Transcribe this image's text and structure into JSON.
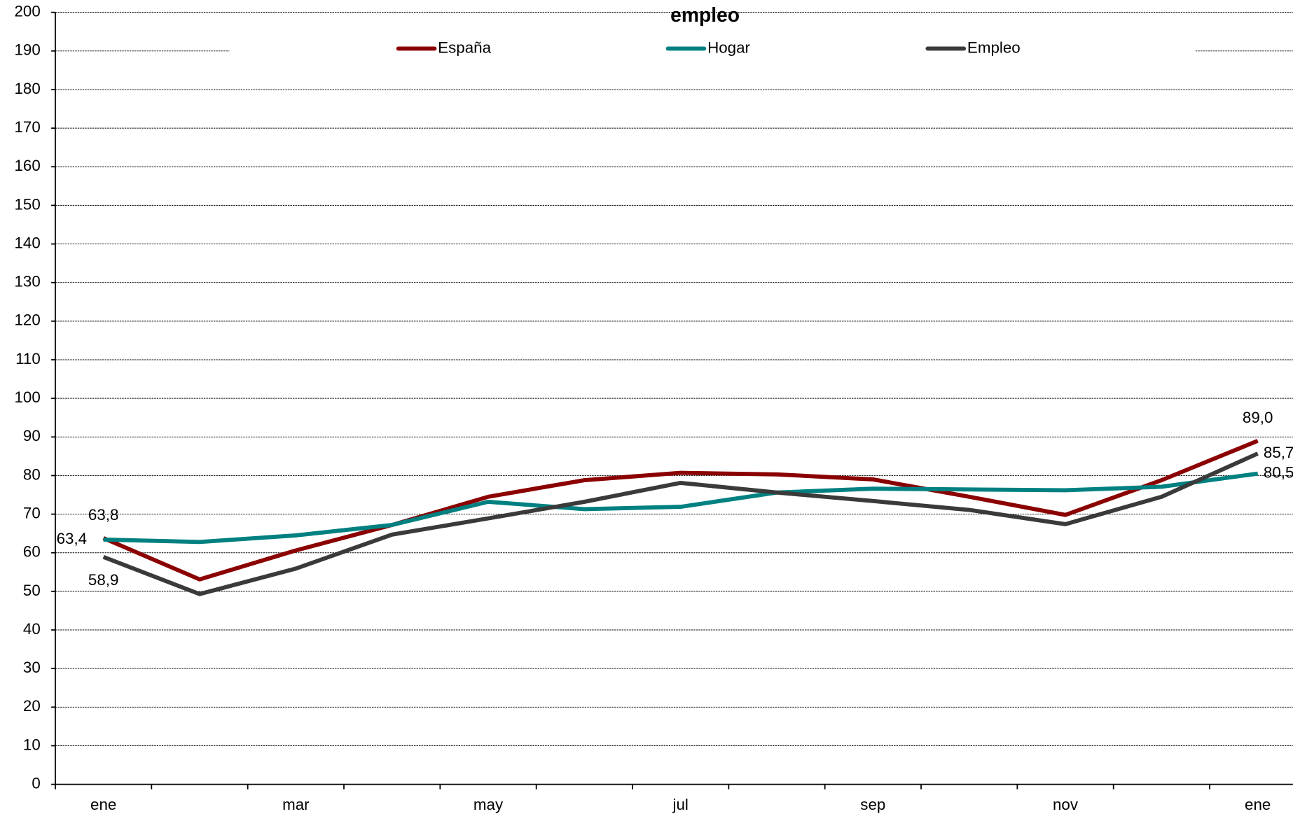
{
  "chart_data": {
    "type": "line",
    "title": "empleo",
    "categories": [
      "ene",
      null,
      "mar",
      null,
      "may",
      null,
      "jul",
      null,
      "sep",
      null,
      "nov",
      null,
      "ene"
    ],
    "series": [
      {
        "name": "España",
        "color": "#8b0000",
        "values": [
          63.8,
          53.1,
          60.6,
          67.2,
          74.5,
          78.8,
          80.7,
          80.3,
          79.0,
          74.5,
          69.8,
          78.8,
          89.0
        ],
        "value_labels": [
          "63,8",
          null,
          null,
          null,
          null,
          null,
          null,
          null,
          null,
          null,
          null,
          null,
          "89,0"
        ]
      },
      {
        "name": "Hogar",
        "color": "#008080",
        "values": [
          63.4,
          62.8,
          64.5,
          67.2,
          73.2,
          71.3,
          71.9,
          75.6,
          76.6,
          76.4,
          76.2,
          77.1,
          80.5
        ],
        "value_labels": [
          "63,4",
          null,
          null,
          null,
          null,
          null,
          null,
          null,
          null,
          null,
          null,
          null,
          "80,5"
        ]
      },
      {
        "name": "Empleo",
        "color": "#3a3a3a",
        "values": [
          58.9,
          49.3,
          55.9,
          64.7,
          68.9,
          73.2,
          78.1,
          75.6,
          73.4,
          71.1,
          67.4,
          74.5,
          85.7
        ],
        "value_labels": [
          "58,9",
          null,
          null,
          null,
          null,
          null,
          null,
          null,
          null,
          null,
          null,
          null,
          "85,7"
        ]
      }
    ],
    "ylim": [
      0,
      200
    ],
    "yticks": [
      0,
      10,
      20,
      30,
      40,
      50,
      60,
      70,
      80,
      90,
      100,
      110,
      120,
      130,
      140,
      150,
      160,
      170,
      180,
      190,
      200
    ],
    "grid": true,
    "legend": "top"
  }
}
